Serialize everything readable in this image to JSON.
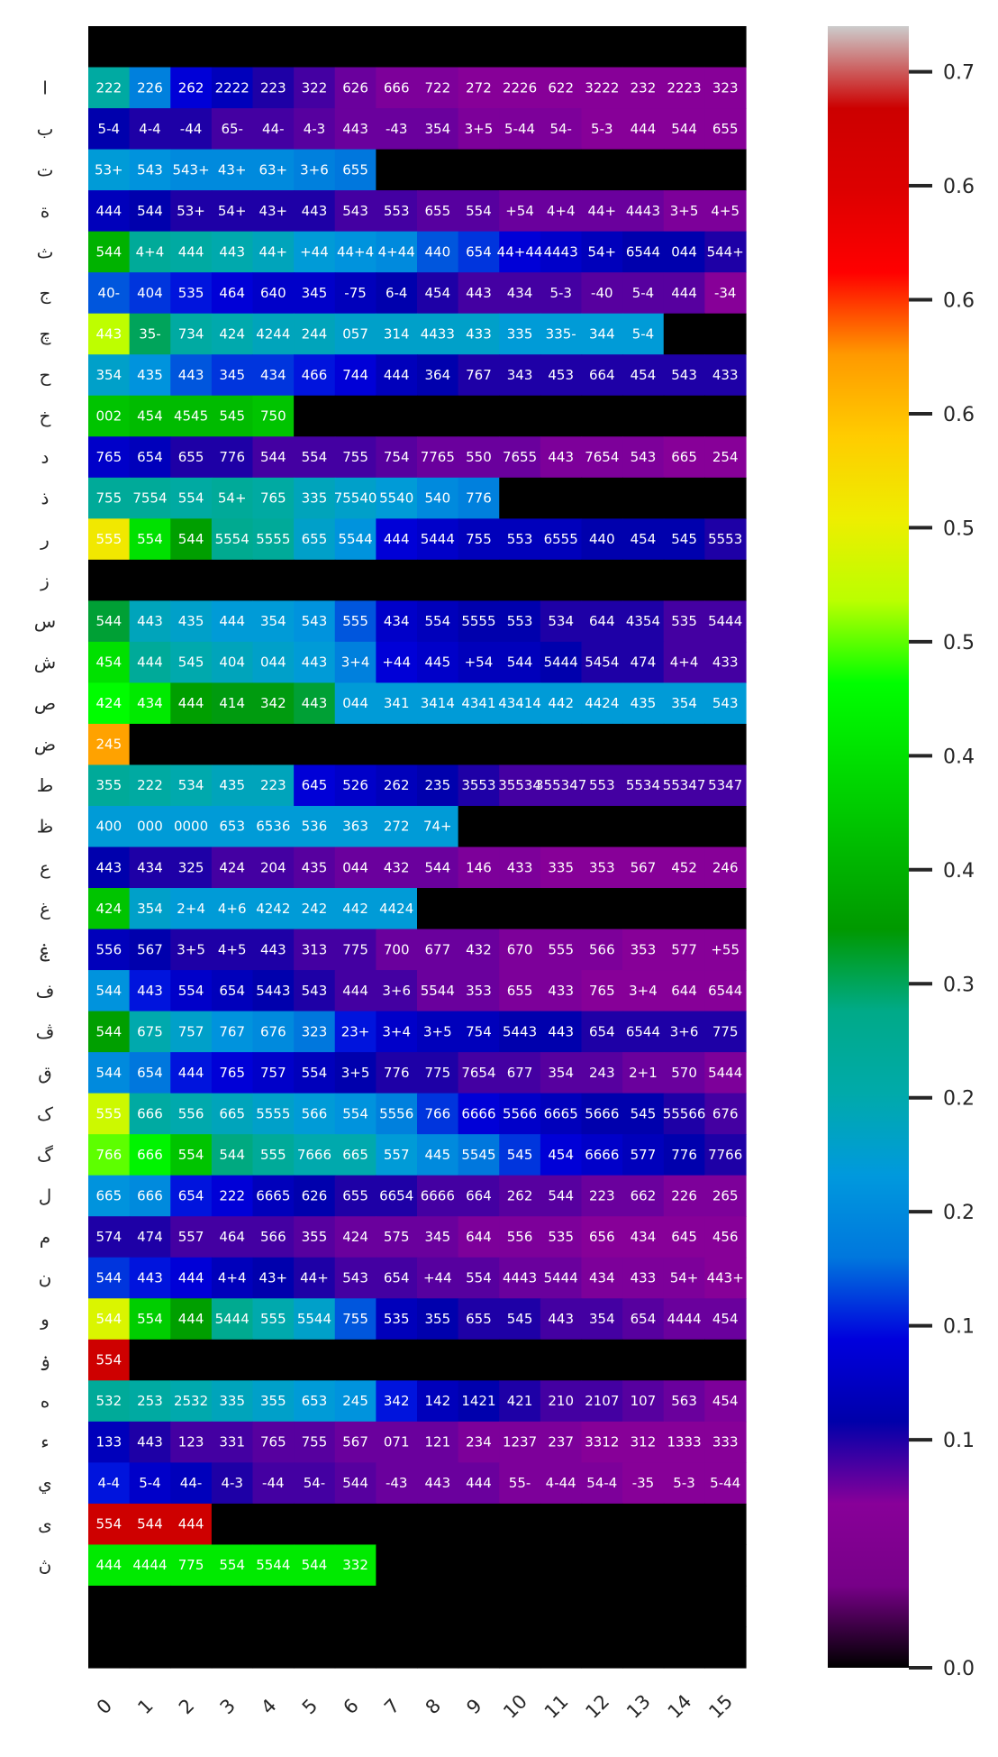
{
  "chart_data": {
    "type": "heatmap",
    "title": "",
    "xlabel": "",
    "ylabel": "",
    "x_categories": [
      "0",
      "1",
      "2",
      "3",
      "4",
      "5",
      "6",
      "7",
      "8",
      "9",
      "10",
      "11",
      "12",
      "13",
      "14",
      "15"
    ],
    "y_categories": [
      "",
      "ا",
      "ب",
      "ت",
      "ة",
      "ث",
      "ج",
      "چ",
      "ح",
      "خ",
      "د",
      "ذ",
      "ر",
      "ز",
      "س",
      "ش",
      "ص",
      "ض",
      "ط",
      "ظ",
      "ع",
      "غ",
      "ۼ",
      "ف",
      "ڤ",
      "ق",
      "ک",
      "گ",
      "ل",
      "م",
      "ن",
      "و",
      "ۏ",
      "ه",
      "ء",
      "ي",
      "ى",
      "ڽ",
      "",
      ""
    ],
    "annotations": [
      [],
      [
        "222",
        "226",
        "262",
        "2222",
        "223",
        "322",
        "626",
        "666",
        "722",
        "272",
        "2226",
        "622",
        "3222",
        "232",
        "2223",
        "323"
      ],
      [
        "5-4",
        "4-4",
        "-44",
        "65-",
        "44-",
        "4-3",
        "443",
        "-43",
        "354",
        "3+5",
        "5-44",
        "54-",
        "5-3",
        "444",
        "544",
        "655"
      ],
      [
        "53+",
        "543",
        "543+",
        "43+",
        "63+",
        "3+6",
        "655"
      ],
      [
        "444",
        "544",
        "53+",
        "54+",
        "43+",
        "443",
        "543",
        "553",
        "655",
        "554",
        "+54",
        "4+4",
        "44+",
        "4443",
        "3+5",
        "4+5"
      ],
      [
        "544",
        "4+4",
        "444",
        "443",
        "44+",
        "+44",
        "44+4",
        "4+44",
        "440",
        "654",
        "44+44",
        "4443",
        "54+",
        "6544",
        "044",
        "544+"
      ],
      [
        "40-",
        "404",
        "535",
        "464",
        "640",
        "345",
        "-75",
        "6-4",
        "454",
        "443",
        "434",
        "5-3",
        "-40",
        "5-4",
        "444",
        "-34"
      ],
      [
        "443",
        "35-",
        "734",
        "424",
        "4244",
        "244",
        "057",
        "314",
        "4433",
        "433",
        "335",
        "335-",
        "344",
        "5-4"
      ],
      [
        "354",
        "435",
        "443",
        "345",
        "434",
        "466",
        "744",
        "444",
        "364",
        "767",
        "343",
        "453",
        "664",
        "454",
        "543",
        "433"
      ],
      [
        "002",
        "454",
        "4545",
        "545",
        "750"
      ],
      [
        "765",
        "654",
        "655",
        "776",
        "544",
        "554",
        "755",
        "754",
        "7765",
        "550",
        "7655",
        "443",
        "7654",
        "543",
        "665",
        "254"
      ],
      [
        "755",
        "7554",
        "554",
        "54+",
        "765",
        "335",
        "75540",
        "5540",
        "540",
        "776"
      ],
      [
        "555",
        "554",
        "544",
        "5554",
        "5555",
        "655",
        "5544",
        "444",
        "5444",
        "755",
        "553",
        "6555",
        "440",
        "454",
        "545",
        "5553"
      ],
      [],
      [
        "544",
        "443",
        "435",
        "444",
        "354",
        "543",
        "555",
        "434",
        "554",
        "5555",
        "553",
        "534",
        "644",
        "4354",
        "535",
        "5444"
      ],
      [
        "454",
        "444",
        "545",
        "404",
        "044",
        "443",
        "3+4",
        "+44",
        "445",
        "+54",
        "544",
        "5444",
        "5454",
        "474",
        "4+4",
        "433"
      ],
      [
        "424",
        "434",
        "444",
        "414",
        "342",
        "443",
        "044",
        "341",
        "3414",
        "4341",
        "43414",
        "442",
        "4424",
        "435",
        "354",
        "543"
      ],
      [
        "245"
      ],
      [
        "355",
        "222",
        "534",
        "435",
        "223",
        "645",
        "526",
        "262",
        "235",
        "3553",
        "35534",
        "355347",
        "553",
        "5534",
        "55347",
        "5347"
      ],
      [
        "400",
        "000",
        "0000",
        "653",
        "6536",
        "536",
        "363",
        "272",
        "74+"
      ],
      [
        "443",
        "434",
        "325",
        "424",
        "204",
        "435",
        "044",
        "432",
        "544",
        "146",
        "433",
        "335",
        "353",
        "567",
        "452",
        "246"
      ],
      [
        "424",
        "354",
        "2+4",
        "4+6",
        "4242",
        "242",
        "442",
        "4424"
      ],
      [
        "556",
        "567",
        "3+5",
        "4+5",
        "443",
        "313",
        "775",
        "700",
        "677",
        "432",
        "670",
        "555",
        "566",
        "353",
        "577",
        "+55"
      ],
      [
        "544",
        "443",
        "554",
        "654",
        "5443",
        "543",
        "444",
        "3+6",
        "5544",
        "353",
        "655",
        "433",
        "765",
        "3+4",
        "644",
        "6544"
      ],
      [
        "544",
        "675",
        "757",
        "767",
        "676",
        "323",
        "23+",
        "3+4",
        "3+5",
        "754",
        "5443",
        "443",
        "654",
        "6544",
        "3+6",
        "775"
      ],
      [
        "544",
        "654",
        "444",
        "765",
        "757",
        "554",
        "3+5",
        "776",
        "775",
        "7654",
        "677",
        "354",
        "243",
        "2+1",
        "570",
        "5444"
      ],
      [
        "555",
        "666",
        "556",
        "665",
        "5555",
        "566",
        "554",
        "5556",
        "766",
        "6666",
        "5566",
        "6665",
        "5666",
        "545",
        "55566",
        "676"
      ],
      [
        "766",
        "666",
        "554",
        "544",
        "555",
        "7666",
        "665",
        "557",
        "445",
        "5545",
        "545",
        "454",
        "6666",
        "577",
        "776",
        "7766"
      ],
      [
        "665",
        "666",
        "654",
        "222",
        "6665",
        "626",
        "655",
        "6654",
        "6666",
        "664",
        "262",
        "544",
        "223",
        "662",
        "226",
        "265"
      ],
      [
        "574",
        "474",
        "557",
        "464",
        "566",
        "355",
        "424",
        "575",
        "345",
        "644",
        "556",
        "535",
        "656",
        "434",
        "645",
        "456"
      ],
      [
        "544",
        "443",
        "444",
        "4+4",
        "43+",
        "44+",
        "543",
        "654",
        "+44",
        "554",
        "4443",
        "5444",
        "434",
        "433",
        "54+",
        "443+"
      ],
      [
        "544",
        "554",
        "444",
        "5444",
        "555",
        "5544",
        "755",
        "535",
        "355",
        "655",
        "545",
        "443",
        "354",
        "654",
        "4444",
        "454"
      ],
      [
        "554"
      ],
      [
        "532",
        "253",
        "2532",
        "335",
        "355",
        "653",
        "245",
        "342",
        "142",
        "1421",
        "421",
        "210",
        "2107",
        "107",
        "563",
        "454"
      ],
      [
        "133",
        "443",
        "123",
        "331",
        "765",
        "755",
        "567",
        "071",
        "121",
        "234",
        "1237",
        "237",
        "3312",
        "312",
        "1333",
        "333"
      ],
      [
        "4-4",
        "5-4",
        "44-",
        "4-3",
        "-44",
        "54-",
        "544",
        "-43",
        "443",
        "444",
        "55-",
        "4-44",
        "54-4",
        "-35",
        "5-3",
        "5-44"
      ],
      [
        "554",
        "544",
        "444"
      ],
      [
        "444",
        "4444",
        "775",
        "554",
        "5544",
        "544",
        "332"
      ],
      [],
      []
    ],
    "values": [
      [
        0,
        0,
        0,
        0,
        0,
        0,
        0,
        0,
        0,
        0,
        0,
        0,
        0,
        0,
        0,
        0
      ],
      [
        0.26,
        0.19,
        0.14,
        0.12,
        0.1,
        0.09,
        0.08,
        0.075,
        0.075,
        0.07,
        0.07,
        0.07,
        0.07,
        0.07,
        0.07,
        0.07
      ],
      [
        0.11,
        0.1,
        0.1,
        0.09,
        0.09,
        0.085,
        0.08,
        0.08,
        0.08,
        0.075,
        0.075,
        0.075,
        0.07,
        0.07,
        0.07,
        0.07
      ],
      [
        0.22,
        0.21,
        0.2,
        0.2,
        0.2,
        0.19,
        0.18,
        0,
        0,
        0,
        0,
        0,
        0,
        0,
        0,
        0
      ],
      [
        0.12,
        0.11,
        0.1,
        0.1,
        0.1,
        0.1,
        0.09,
        0.09,
        0.085,
        0.085,
        0.08,
        0.08,
        0.08,
        0.08,
        0.075,
        0.075
      ],
      [
        0.35,
        0.27,
        0.26,
        0.25,
        0.24,
        0.22,
        0.21,
        0.2,
        0.17,
        0.16,
        0.14,
        0.13,
        0.12,
        0.11,
        0.11,
        0.1
      ],
      [
        0.17,
        0.16,
        0.15,
        0.14,
        0.13,
        0.13,
        0.12,
        0.11,
        0.1,
        0.09,
        0.09,
        0.09,
        0.085,
        0.085,
        0.085,
        0.07
      ],
      [
        0.47,
        0.3,
        0.26,
        0.25,
        0.24,
        0.24,
        0.23,
        0.23,
        0.23,
        0.23,
        0.22,
        0.22,
        0.22,
        0.22,
        0,
        0
      ],
      [
        0.23,
        0.21,
        0.17,
        0.16,
        0.16,
        0.15,
        0.14,
        0.12,
        0.11,
        0.1,
        0.1,
        0.1,
        0.1,
        0.1,
        0.1,
        0.1
      ],
      [
        0.37,
        0.36,
        0.36,
        0.36,
        0.37,
        0,
        0,
        0,
        0,
        0,
        0,
        0,
        0,
        0,
        0,
        0
      ],
      [
        0.13,
        0.12,
        0.1,
        0.1,
        0.09,
        0.09,
        0.09,
        0.085,
        0.08,
        0.08,
        0.08,
        0.075,
        0.075,
        0.075,
        0.07,
        0.07
      ],
      [
        0.27,
        0.27,
        0.26,
        0.27,
        0.26,
        0.24,
        0.23,
        0.22,
        0.2,
        0.19,
        0,
        0,
        0,
        0,
        0,
        0
      ],
      [
        0.51,
        0.4,
        0.33,
        0.28,
        0.27,
        0.23,
        0.21,
        0.14,
        0.13,
        0.12,
        0.12,
        0.12,
        0.11,
        0.11,
        0.11,
        0.1
      ],
      [
        0,
        0,
        0,
        0,
        0,
        0,
        0,
        0,
        0,
        0,
        0,
        0,
        0,
        0,
        0,
        0
      ],
      [
        0.31,
        0.24,
        0.23,
        0.22,
        0.22,
        0.21,
        0.17,
        0.13,
        0.12,
        0.11,
        0.11,
        0.1,
        0.1,
        0.1,
        0.09,
        0.09
      ],
      [
        0.4,
        0.27,
        0.25,
        0.24,
        0.23,
        0.22,
        0.19,
        0.14,
        0.13,
        0.12,
        0.12,
        0.11,
        0.1,
        0.1,
        0.09,
        0.09
      ],
      [
        0.43,
        0.41,
        0.33,
        0.32,
        0.32,
        0.31,
        0.22,
        0.22,
        0.22,
        0.22,
        0.22,
        0.22,
        0.22,
        0.22,
        0.22,
        0.22
      ],
      [
        0.57,
        0,
        0,
        0,
        0,
        0,
        0,
        0,
        0,
        0,
        0,
        0,
        0,
        0,
        0,
        0
      ],
      [
        0.27,
        0.26,
        0.25,
        0.24,
        0.24,
        0.14,
        0.13,
        0.12,
        0.11,
        0.1,
        0.09,
        0.09,
        0.09,
        0.09,
        0.09,
        0.09
      ],
      [
        0.22,
        0.22,
        0.22,
        0.22,
        0.22,
        0.22,
        0.22,
        0.22,
        0.22,
        0,
        0,
        0,
        0,
        0,
        0,
        0
      ],
      [
        0.11,
        0.1,
        0.1,
        0.09,
        0.09,
        0.085,
        0.08,
        0.08,
        0.08,
        0.075,
        0.075,
        0.07,
        0.07,
        0.07,
        0.07,
        0.07
      ],
      [
        0.37,
        0.23,
        0.22,
        0.22,
        0.22,
        0.22,
        0.22,
        0.22,
        0,
        0,
        0,
        0,
        0,
        0,
        0,
        0
      ],
      [
        0.12,
        0.11,
        0.1,
        0.1,
        0.1,
        0.09,
        0.09,
        0.08,
        0.08,
        0.08,
        0.075,
        0.075,
        0.075,
        0.07,
        0.07,
        0.07
      ],
      [
        0.21,
        0.15,
        0.13,
        0.12,
        0.11,
        0.1,
        0.09,
        0.09,
        0.08,
        0.08,
        0.075,
        0.075,
        0.07,
        0.07,
        0.07,
        0.07
      ],
      [
        0.33,
        0.25,
        0.23,
        0.21,
        0.2,
        0.18,
        0.15,
        0.13,
        0.12,
        0.12,
        0.11,
        0.11,
        0.1,
        0.1,
        0.1,
        0.1
      ],
      [
        0.2,
        0.18,
        0.15,
        0.14,
        0.13,
        0.12,
        0.11,
        0.1,
        0.1,
        0.09,
        0.09,
        0.085,
        0.085,
        0.08,
        0.08,
        0.075
      ],
      [
        0.48,
        0.26,
        0.25,
        0.24,
        0.23,
        0.22,
        0.21,
        0.19,
        0.16,
        0.14,
        0.13,
        0.12,
        0.11,
        0.11,
        0.1,
        0.09
      ],
      [
        0.45,
        0.42,
        0.37,
        0.29,
        0.27,
        0.25,
        0.25,
        0.22,
        0.2,
        0.18,
        0.16,
        0.14,
        0.13,
        0.12,
        0.11,
        0.1
      ],
      [
        0.21,
        0.2,
        0.15,
        0.14,
        0.12,
        0.11,
        0.1,
        0.1,
        0.09,
        0.09,
        0.085,
        0.085,
        0.08,
        0.08,
        0.075,
        0.075
      ],
      [
        0.1,
        0.1,
        0.09,
        0.09,
        0.09,
        0.085,
        0.08,
        0.08,
        0.08,
        0.075,
        0.075,
        0.075,
        0.07,
        0.07,
        0.07,
        0.07
      ],
      [
        0.16,
        0.15,
        0.14,
        0.12,
        0.11,
        0.1,
        0.09,
        0.09,
        0.085,
        0.085,
        0.08,
        0.08,
        0.075,
        0.075,
        0.075,
        0.07
      ],
      [
        0.49,
        0.38,
        0.33,
        0.28,
        0.25,
        0.23,
        0.17,
        0.12,
        0.11,
        0.1,
        0.1,
        0.09,
        0.09,
        0.085,
        0.08,
        0.08
      ],
      [
        0.68,
        0,
        0,
        0,
        0,
        0,
        0,
        0,
        0,
        0,
        0,
        0,
        0,
        0,
        0,
        0
      ],
      [
        0.27,
        0.26,
        0.25,
        0.24,
        0.23,
        0.22,
        0.21,
        0.15,
        0.12,
        0.11,
        0.1,
        0.09,
        0.09,
        0.085,
        0.08,
        0.075
      ],
      [
        0.12,
        0.1,
        0.09,
        0.09,
        0.085,
        0.085,
        0.08,
        0.08,
        0.08,
        0.075,
        0.075,
        0.075,
        0.07,
        0.07,
        0.07,
        0.07
      ],
      [
        0.15,
        0.13,
        0.12,
        0.1,
        0.09,
        0.09,
        0.085,
        0.08,
        0.08,
        0.08,
        0.075,
        0.075,
        0.075,
        0.07,
        0.07,
        0.07
      ],
      [
        0.68,
        0.68,
        0.68,
        0,
        0,
        0,
        0,
        0,
        0,
        0,
        0,
        0,
        0,
        0,
        0,
        0
      ],
      [
        0.41,
        0.41,
        0.41,
        0.41,
        0.41,
        0.41,
        0.41,
        0,
        0,
        0,
        0,
        0,
        0,
        0,
        0,
        0
      ],
      [
        0,
        0,
        0,
        0,
        0,
        0,
        0,
        0,
        0,
        0,
        0,
        0,
        0,
        0,
        0,
        0
      ],
      [
        0,
        0,
        0,
        0,
        0,
        0,
        0,
        0,
        0,
        0,
        0,
        0,
        0,
        0,
        0,
        0
      ]
    ],
    "vmin": 0,
    "vmax": 0.72,
    "colormap": "nipy_spectral",
    "colorbar_ticks": [
      {
        "value": 0.0,
        "label": "0.0"
      },
      {
        "value": 0.1,
        "label": "0.1"
      },
      {
        "value": 0.15,
        "label": "0.1"
      },
      {
        "value": 0.2,
        "label": "0.2"
      },
      {
        "value": 0.25,
        "label": "0.2"
      },
      {
        "value": 0.3,
        "label": "0.3"
      },
      {
        "value": 0.35,
        "label": "0.4"
      },
      {
        "value": 0.4,
        "label": "0.4"
      },
      {
        "value": 0.45,
        "label": "0.5"
      },
      {
        "value": 0.5,
        "label": "0.5"
      },
      {
        "value": 0.55,
        "label": "0.6"
      },
      {
        "value": 0.6,
        "label": "0.6"
      },
      {
        "value": 0.65,
        "label": "0.6"
      },
      {
        "value": 0.7,
        "label": "0.7"
      }
    ]
  }
}
